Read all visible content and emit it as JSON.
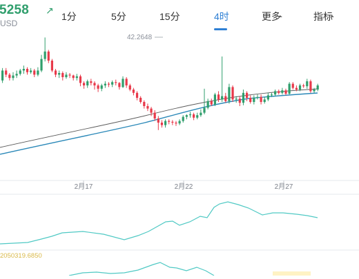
{
  "header": {
    "price": "5258",
    "change_icon": "arrow-up-right-icon",
    "unit": "USD",
    "accent_up": "#2f9e6c",
    "accent_down": "#e8394a",
    "active_tab_color": "#2e7fd4"
  },
  "tabs": [
    {
      "label": "1分",
      "active": false,
      "dropdown": false
    },
    {
      "label": "5分",
      "active": false,
      "dropdown": false
    },
    {
      "label": "15分",
      "active": false,
      "dropdown": false
    },
    {
      "label": "4时",
      "active": true,
      "dropdown": false
    },
    {
      "label": "更多",
      "active": false,
      "dropdown": true
    },
    {
      "label": "指标",
      "active": false,
      "dropdown": true
    }
  ],
  "chart_data": {
    "type": "candlestick",
    "x_tick_labels": [
      "2月17",
      "2月22",
      "2月27"
    ],
    "max_marker": "42.2648",
    "candles": [
      [
        121,
        133,
        118,
        136
      ],
      [
        133,
        128,
        125,
        136
      ],
      [
        128,
        124,
        121,
        130
      ],
      [
        124,
        127,
        121,
        131
      ],
      [
        127,
        129,
        124,
        133
      ],
      [
        129,
        133,
        127,
        135
      ],
      [
        133,
        135,
        129,
        139
      ],
      [
        135,
        131,
        128,
        137
      ],
      [
        131,
        133,
        129,
        136
      ],
      [
        133,
        128,
        125,
        135
      ],
      [
        128,
        133,
        126,
        137
      ],
      [
        133,
        147,
        131,
        152
      ],
      [
        147,
        156,
        144,
        173
      ],
      [
        156,
        145,
        142,
        158
      ],
      [
        145,
        133,
        131,
        147
      ],
      [
        133,
        128,
        125,
        135
      ],
      [
        128,
        130,
        124,
        133
      ],
      [
        130,
        125,
        121,
        132
      ],
      [
        125,
        128,
        123,
        131
      ],
      [
        128,
        127,
        124,
        130
      ],
      [
        127,
        124,
        121,
        128
      ],
      [
        124,
        126,
        121,
        129
      ],
      [
        126,
        118,
        114,
        128
      ],
      [
        118,
        115,
        111,
        120
      ],
      [
        115,
        120,
        112,
        122
      ],
      [
        120,
        118,
        115,
        123
      ],
      [
        118,
        115,
        110,
        120
      ],
      [
        115,
        111,
        107,
        117
      ],
      [
        111,
        115,
        108,
        117
      ],
      [
        115,
        117,
        112,
        120
      ],
      [
        117,
        116,
        113,
        119
      ],
      [
        116,
        119,
        113,
        121
      ],
      [
        119,
        118,
        115,
        122
      ],
      [
        118,
        113,
        110,
        119
      ],
      [
        113,
        123,
        112,
        126
      ],
      [
        123,
        115,
        112,
        125
      ],
      [
        115,
        110,
        108,
        117
      ],
      [
        110,
        106,
        103,
        112
      ],
      [
        106,
        100,
        97,
        108
      ],
      [
        100,
        95,
        93,
        102
      ],
      [
        95,
        90,
        87,
        97
      ],
      [
        90,
        87,
        84,
        93
      ],
      [
        87,
        82,
        78,
        89
      ],
      [
        82,
        75,
        72,
        85
      ],
      [
        75,
        70,
        61,
        78
      ],
      [
        70,
        67,
        64,
        73
      ],
      [
        67,
        72,
        64,
        74
      ],
      [
        72,
        71,
        68,
        74
      ],
      [
        71,
        70,
        67,
        73
      ],
      [
        70,
        69,
        66,
        72
      ],
      [
        69,
        72,
        67,
        74
      ],
      [
        72,
        77,
        70,
        79
      ],
      [
        77,
        79,
        74,
        80
      ],
      [
        79,
        80,
        76,
        83
      ],
      [
        80,
        76,
        73,
        82
      ],
      [
        76,
        79,
        74,
        82
      ],
      [
        79,
        82,
        77,
        86
      ],
      [
        82,
        88,
        80,
        111
      ],
      [
        88,
        96,
        86,
        99
      ],
      [
        96,
        92,
        90,
        99
      ],
      [
        92,
        104,
        90,
        106
      ],
      [
        104,
        98,
        95,
        108
      ],
      [
        98,
        102,
        95,
        150
      ],
      [
        102,
        96,
        94,
        106
      ],
      [
        96,
        113,
        93,
        117
      ],
      [
        113,
        98,
        95,
        115
      ],
      [
        98,
        99,
        94,
        102
      ],
      [
        99,
        94,
        90,
        102
      ],
      [
        94,
        106,
        91,
        110
      ],
      [
        106,
        100,
        96,
        108
      ],
      [
        100,
        95,
        93,
        103
      ],
      [
        95,
        100,
        92,
        103
      ],
      [
        100,
        101,
        98,
        104
      ],
      [
        101,
        95,
        92,
        104
      ],
      [
        95,
        98,
        93,
        101
      ],
      [
        98,
        103,
        96,
        106
      ],
      [
        103,
        104,
        101,
        106
      ],
      [
        104,
        108,
        102,
        110
      ],
      [
        108,
        106,
        104,
        110
      ],
      [
        106,
        109,
        104,
        112
      ],
      [
        109,
        105,
        103,
        111
      ],
      [
        105,
        117,
        104,
        119
      ],
      [
        117,
        112,
        110,
        119
      ],
      [
        112,
        110,
        108,
        115
      ],
      [
        110,
        115,
        108,
        117
      ],
      [
        115,
        114,
        112,
        117
      ],
      [
        114,
        120,
        111,
        123
      ],
      [
        120,
        108,
        106,
        122
      ],
      [
        108,
        110,
        106,
        112
      ],
      [
        110,
        115,
        108,
        117
      ]
    ],
    "ma_slow_color": "#2a88b8",
    "ma_fast_color": "#5b5b5b",
    "indicator1_color": "#4fc9c4",
    "indicator2_color": "#4fc9c4",
    "indicator2_label": "2050319.6850",
    "indicator2_label_color": "#d9b948"
  }
}
